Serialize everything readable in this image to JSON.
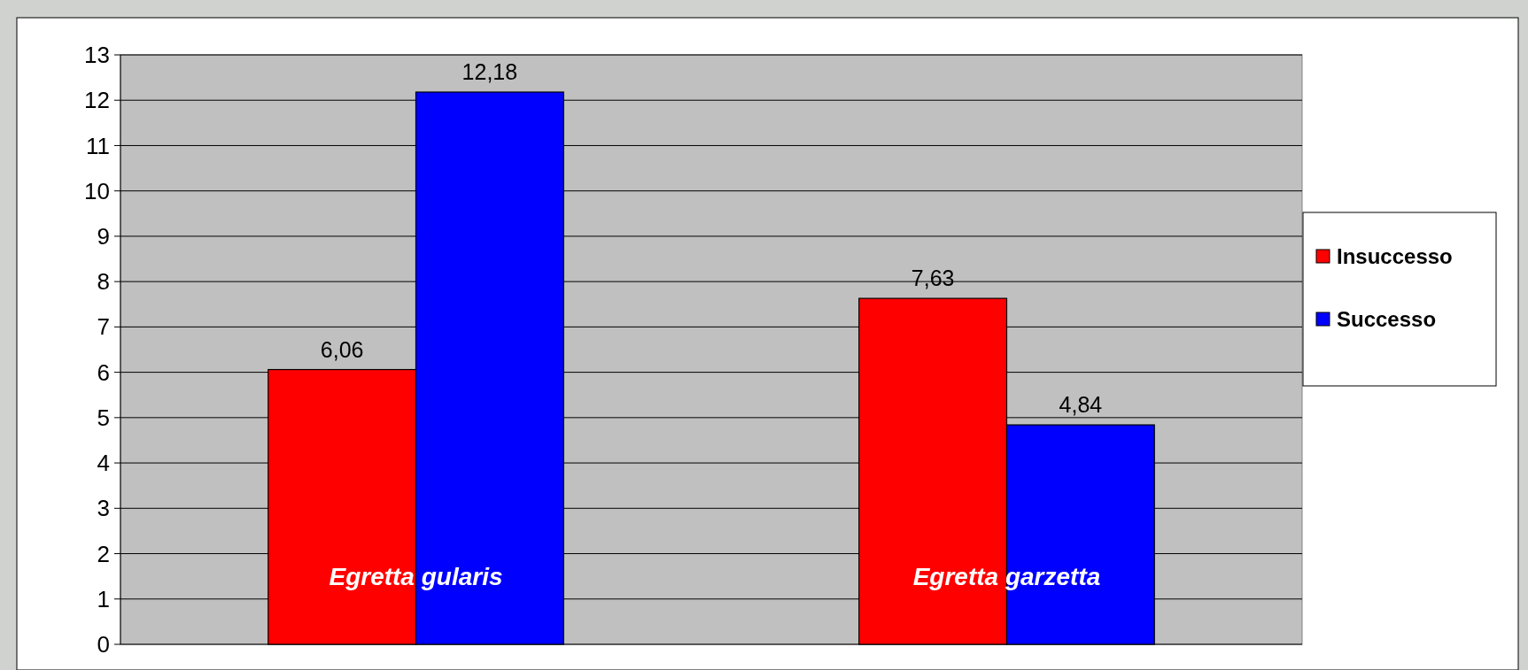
{
  "chart_data": {
    "type": "bar",
    "categories": [
      "Egretta gularis",
      "Egretta garzetta"
    ],
    "series": [
      {
        "name": "Insuccesso",
        "color": "#ff0000",
        "values": [
          6.06,
          7.63
        ],
        "value_labels": [
          "6,06",
          "7,63"
        ]
      },
      {
        "name": "Successo",
        "color": "#0000ff",
        "values": [
          12.18,
          4.84
        ],
        "value_labels": [
          "12,18",
          "4,84"
        ]
      }
    ],
    "ylim": [
      0,
      13
    ],
    "yticks": [
      0,
      1,
      2,
      3,
      4,
      5,
      6,
      7,
      8,
      9,
      10,
      11,
      12,
      13
    ],
    "grid": "y",
    "legend": "right"
  }
}
